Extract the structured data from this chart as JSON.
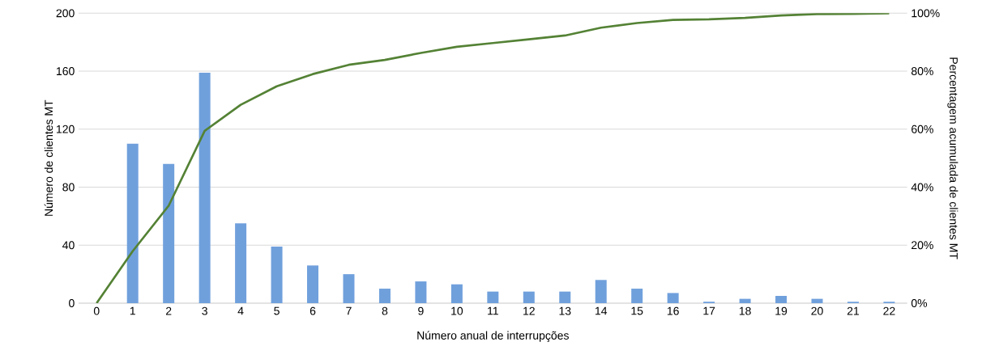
{
  "chart_data": {
    "type": "bar",
    "xlabel": "Número anual de interrupções",
    "ylabel": "Número de clientes MT",
    "y2label": "Percentagem acumulada de clientes MT",
    "categories": [
      "0",
      "1",
      "2",
      "3",
      "4",
      "5",
      "6",
      "7",
      "8",
      "9",
      "10",
      "11",
      "12",
      "13",
      "14",
      "15",
      "16",
      "17",
      "18",
      "19",
      "20",
      "21",
      "22"
    ],
    "series": [
      {
        "color": "#70a0dc",
        "values": [
          0,
          110,
          96,
          159,
          55,
          39,
          26,
          20,
          10,
          15,
          13,
          8,
          8,
          8,
          16,
          10,
          7,
          1,
          3,
          5,
          3,
          1,
          1
        ]
      },
      {
        "type": "line",
        "axis": "y2",
        "color": "#548235",
        "values": [
          0,
          17.9,
          33.6,
          59.4,
          68.4,
          74.8,
          79.0,
          82.2,
          83.9,
          86.3,
          88.4,
          89.7,
          91.0,
          92.3,
          95.0,
          96.6,
          97.7,
          97.9,
          98.4,
          99.2,
          99.7,
          99.8,
          100
        ]
      }
    ],
    "ylim": [
      0,
      200
    ],
    "yticks": [
      0,
      40,
      80,
      120,
      160,
      200
    ],
    "y2lim": [
      0,
      100
    ],
    "y2ticks": [
      {
        "value": 0,
        "label": "0%"
      },
      {
        "value": 20,
        "label": "20%"
      },
      {
        "value": 40,
        "label": "40%"
      },
      {
        "value": 60,
        "label": "60%"
      },
      {
        "value": 80,
        "label": "80%"
      },
      {
        "value": 100,
        "label": "100%"
      }
    ],
    "grid": "y"
  }
}
